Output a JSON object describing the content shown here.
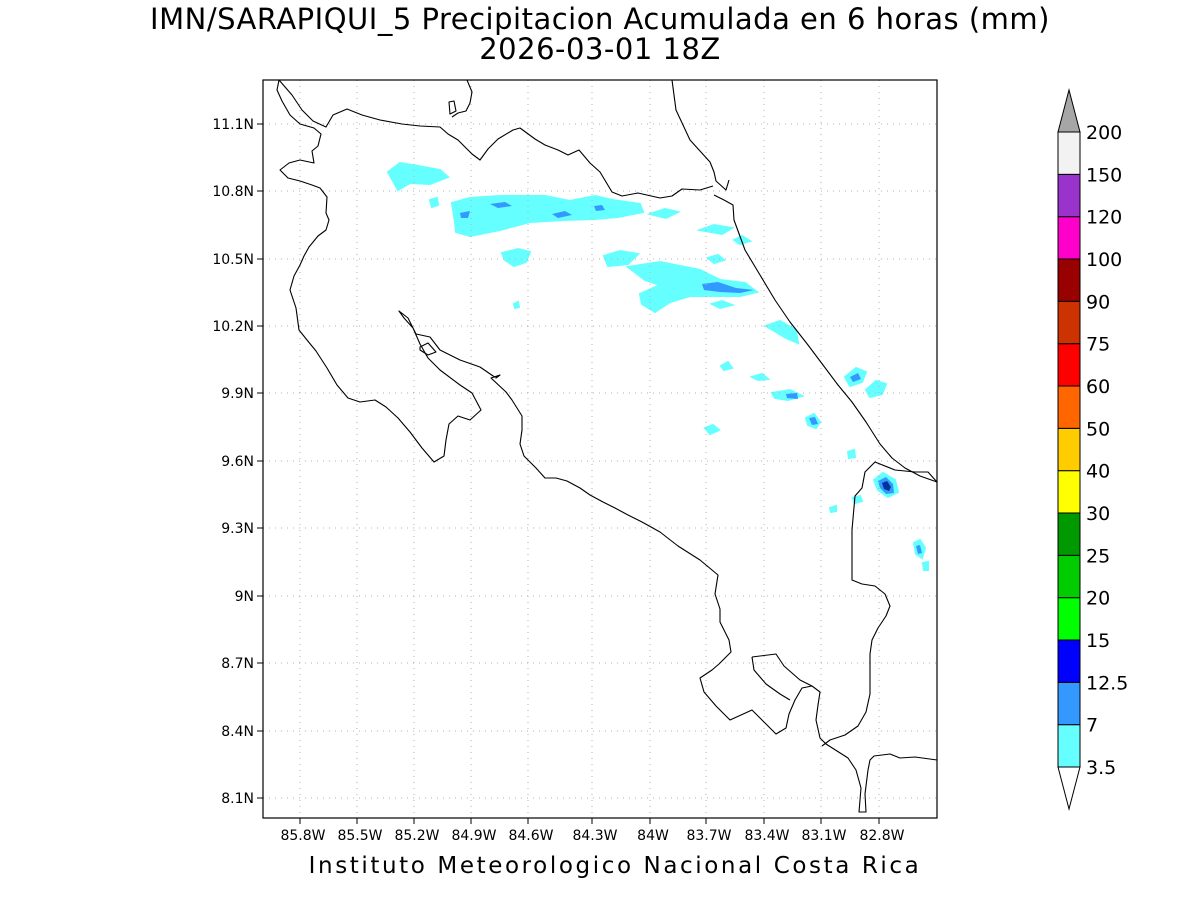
{
  "map": {
    "title_line1": "IMN/SARAPIQUI_5 Precipitacion Acumulada en 6 horas (mm)",
    "title_line2": "2026-03-01 18Z",
    "credit": "Instituto Meteorologico Nacional Costa Rica",
    "lat_labels": [
      "11.1N",
      "10.8N",
      "10.5N",
      "10.2N",
      "9.9N",
      "9.6N",
      "9.3N",
      "9N",
      "8.7N",
      "8.4N",
      "8.1N"
    ],
    "lon_labels": [
      "85.8W",
      "85.5W",
      "85.2W",
      "84.9W",
      "84.6W",
      "84.3W",
      "84W",
      "83.7W",
      "83.4W",
      "83.1W",
      "82.8W"
    ],
    "grid": true,
    "frame_color": "#000000",
    "coast_color": "#000000"
  },
  "colorbar": {
    "labels": [
      "3.5",
      "7",
      "12.5",
      "15",
      "20",
      "25",
      "30",
      "40",
      "50",
      "60",
      "75",
      "90",
      "100",
      "120",
      "150",
      "200"
    ],
    "colors": [
      "#ffffff",
      "#66ffff",
      "#3399ff",
      "#0000ff",
      "#00ff00",
      "#00cc00",
      "#009900",
      "#ffff00",
      "#ffcc00",
      "#ff6600",
      "#ff0000",
      "#cc3300",
      "#990000",
      "#ff00cc",
      "#9933cc",
      "#f2f2f2",
      "#a6a6a6"
    ]
  },
  "precip": {
    "light_color": "#66ffff",
    "medium_color": "#3399ff",
    "core_color": "#003399"
  }
}
